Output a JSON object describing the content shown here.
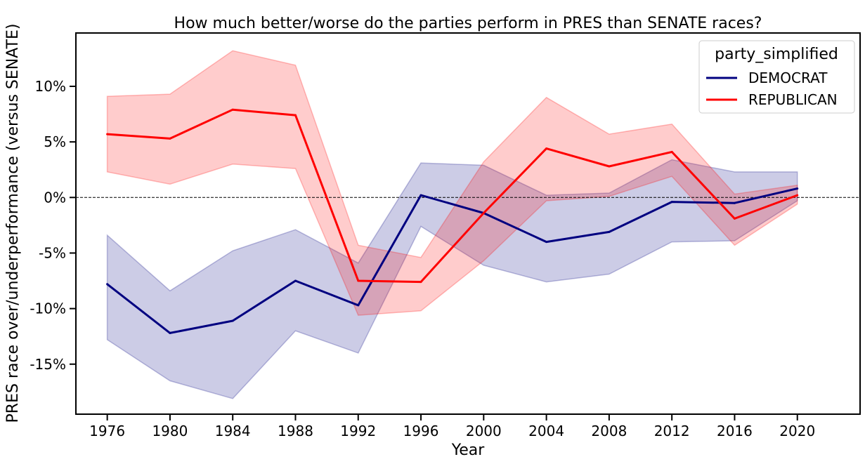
{
  "chart_data": {
    "type": "line",
    "title": "How much better/worse do the parties perform in PRES than SENATE races?",
    "xlabel": "Year",
    "ylabel": "PRES race over/underperformance (versus SENATE)",
    "x": [
      1976,
      1980,
      1984,
      1988,
      1992,
      1996,
      2000,
      2004,
      2008,
      2012,
      2016,
      2020
    ],
    "xlim": [
      1974,
      2024
    ],
    "ylim": [
      -19.5,
      14.8
    ],
    "y_ticks": [
      10,
      5,
      0,
      -5,
      -10,
      -15
    ],
    "y_tick_labels": [
      "10%",
      "5%",
      "0%",
      "-5%",
      "-10%",
      "-15%"
    ],
    "y_unit": "%",
    "reference_line": {
      "y": 0,
      "style": "dashed"
    },
    "legend": {
      "title": "party_simplified",
      "position": "top-right"
    },
    "series": [
      {
        "name": "DEMOCRAT",
        "color": "#000080",
        "values": [
          -7.8,
          -12.2,
          -11.1,
          -7.5,
          -9.7,
          0.2,
          -1.4,
          -4.0,
          -3.1,
          -0.4,
          -0.5,
          0.8
        ],
        "ci_lower": [
          -12.8,
          -16.5,
          -18.1,
          -12.0,
          -14.0,
          -2.6,
          -6.1,
          -7.6,
          -6.9,
          -4.0,
          -3.9,
          -0.3
        ],
        "ci_upper": [
          -3.4,
          -8.4,
          -4.8,
          -2.9,
          -5.9,
          3.1,
          2.9,
          0.2,
          0.4,
          3.4,
          2.3,
          2.3
        ]
      },
      {
        "name": "REPUBLICAN",
        "color": "#ff0000",
        "values": [
          5.7,
          5.3,
          7.9,
          7.4,
          -7.5,
          -7.6,
          -1.4,
          4.4,
          2.8,
          4.1,
          -1.9,
          0.2
        ],
        "ci_lower": [
          2.3,
          1.2,
          3.0,
          2.6,
          -10.6,
          -10.2,
          -5.7,
          -0.3,
          0.1,
          1.9,
          -4.3,
          -0.6
        ],
        "ci_upper": [
          9.1,
          9.3,
          13.2,
          11.9,
          -4.3,
          -5.4,
          3.2,
          9.0,
          5.7,
          6.6,
          0.3,
          1.1
        ]
      }
    ]
  }
}
